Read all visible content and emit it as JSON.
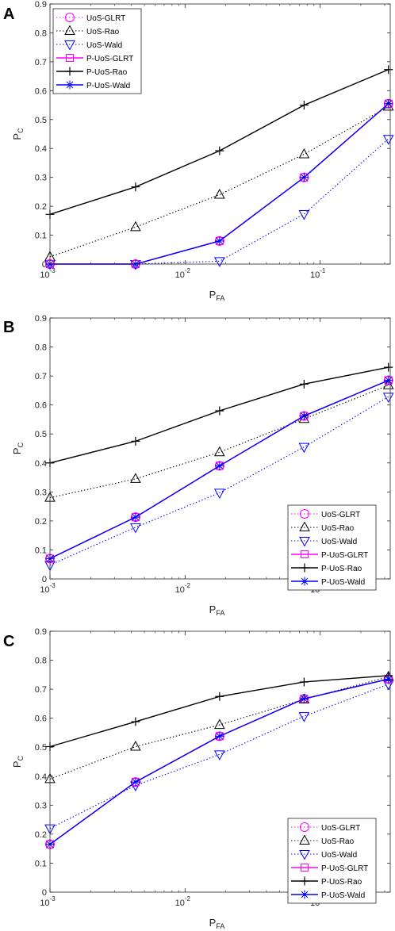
{
  "chart_data": [
    {
      "panel_label": "A",
      "type": "line",
      "xscale": "log",
      "xlim": [
        0.001,
        0.33
      ],
      "ylim": [
        0,
        0.9
      ],
      "xlabel": "P",
      "xlabel_sub": "FA",
      "ylabel": "P",
      "ylabel_sub": "C",
      "xticks": [
        "10",
        "10",
        "10"
      ],
      "xticks_exp": [
        "-3",
        "-2",
        "-1"
      ],
      "yticks": [
        "0",
        "0.1",
        "0.2",
        "0.3",
        "0.4",
        "0.5",
        "0.6",
        "0.7",
        "0.8",
        "0.9"
      ],
      "legend_position": "top-left",
      "x": [
        0.001,
        0.0043,
        0.018,
        0.076,
        0.32
      ],
      "series": [
        {
          "name": "UoS-GLRT",
          "values": [
            0.0,
            0.0,
            0.08,
            0.3,
            0.555
          ],
          "color": "#ff00ff",
          "dash": "dotted",
          "marker": "circle"
        },
        {
          "name": "UoS-Rao",
          "values": [
            0.025,
            0.128,
            0.24,
            0.38,
            0.545
          ],
          "color": "#000000",
          "dash": "dotted",
          "marker": "triangle-up"
        },
        {
          "name": "UoS-Wald",
          "values": [
            0.0,
            0.0,
            0.01,
            0.173,
            0.433
          ],
          "color": "#0000ff",
          "dash": "dotted",
          "marker": "triangle-down"
        },
        {
          "name": "P-UoS-GLRT",
          "values": [
            0.0,
            0.0,
            0.08,
            0.3,
            0.555
          ],
          "color": "#ff00ff",
          "dash": "solid",
          "marker": "square"
        },
        {
          "name": "P-UoS-Rao",
          "values": [
            0.172,
            0.267,
            0.392,
            0.55,
            0.673
          ],
          "color": "#000000",
          "dash": "solid",
          "marker": "plus"
        },
        {
          "name": "P-UoS-Wald",
          "values": [
            0.0,
            0.0,
            0.08,
            0.3,
            0.555
          ],
          "color": "#0000ff",
          "dash": "solid",
          "marker": "asterisk"
        }
      ]
    },
    {
      "panel_label": "B",
      "type": "line",
      "xscale": "log",
      "xlim": [
        0.001,
        0.33
      ],
      "ylim": [
        0,
        0.9
      ],
      "xlabel": "P",
      "xlabel_sub": "FA",
      "ylabel": "P",
      "ylabel_sub": "C",
      "xticks": [
        "10",
        "10",
        "10"
      ],
      "xticks_exp": [
        "-3",
        "-2",
        "-1"
      ],
      "yticks": [
        "0",
        "0.1",
        "0.2",
        "0.3",
        "0.4",
        "0.5",
        "0.6",
        "0.7",
        "0.8",
        "0.9"
      ],
      "legend_position": "bottom-right",
      "x": [
        0.001,
        0.0043,
        0.018,
        0.076,
        0.32
      ],
      "series": [
        {
          "name": "UoS-GLRT",
          "values": [
            0.07,
            0.213,
            0.39,
            0.562,
            0.685
          ],
          "color": "#ff00ff",
          "dash": "dotted",
          "marker": "circle"
        },
        {
          "name": "UoS-Rao",
          "values": [
            0.28,
            0.345,
            0.437,
            0.552,
            0.668
          ],
          "color": "#000000",
          "dash": "dotted",
          "marker": "triangle-up"
        },
        {
          "name": "UoS-Wald",
          "values": [
            0.048,
            0.178,
            0.297,
            0.455,
            0.628
          ],
          "color": "#0000ff",
          "dash": "dotted",
          "marker": "triangle-down"
        },
        {
          "name": "P-UoS-GLRT",
          "values": [
            0.07,
            0.213,
            0.39,
            0.562,
            0.685
          ],
          "color": "#ff00ff",
          "dash": "solid",
          "marker": "square"
        },
        {
          "name": "P-UoS-Rao",
          "values": [
            0.4,
            0.475,
            0.58,
            0.672,
            0.73
          ],
          "color": "#000000",
          "dash": "solid",
          "marker": "plus"
        },
        {
          "name": "P-UoS-Wald",
          "values": [
            0.07,
            0.213,
            0.39,
            0.562,
            0.685
          ],
          "color": "#0000ff",
          "dash": "solid",
          "marker": "asterisk"
        }
      ]
    },
    {
      "panel_label": "C",
      "type": "line",
      "xscale": "log",
      "xlim": [
        0.001,
        0.33
      ],
      "ylim": [
        0,
        0.9
      ],
      "xlabel": "P",
      "xlabel_sub": "FA",
      "ylabel": "P",
      "ylabel_sub": "C",
      "xticks": [
        "10",
        "10",
        "10"
      ],
      "xticks_exp": [
        "-3",
        "-2",
        "-1"
      ],
      "yticks": [
        "0",
        "0.1",
        "0.2",
        "0.3",
        "0.4",
        "0.5",
        "0.6",
        "0.7",
        "0.8",
        "0.9"
      ],
      "legend_position": "bottom-right",
      "x": [
        0.001,
        0.0043,
        0.018,
        0.076,
        0.32
      ],
      "series": [
        {
          "name": "UoS-GLRT",
          "values": [
            0.165,
            0.38,
            0.538,
            0.667,
            0.735
          ],
          "color": "#ff00ff",
          "dash": "dotted",
          "marker": "circle"
        },
        {
          "name": "UoS-Rao",
          "values": [
            0.39,
            0.502,
            0.577,
            0.665,
            0.743
          ],
          "color": "#000000",
          "dash": "dotted",
          "marker": "triangle-up"
        },
        {
          "name": "UoS-Wald",
          "values": [
            0.22,
            0.368,
            0.475,
            0.607,
            0.717
          ],
          "color": "#0000ff",
          "dash": "dotted",
          "marker": "triangle-down"
        },
        {
          "name": "P-UoS-GLRT",
          "values": [
            0.165,
            0.38,
            0.538,
            0.667,
            0.735
          ],
          "color": "#ff00ff",
          "dash": "solid",
          "marker": "square"
        },
        {
          "name": "P-UoS-Rao",
          "values": [
            0.502,
            0.588,
            0.675,
            0.725,
            0.747
          ],
          "color": "#000000",
          "dash": "solid",
          "marker": "plus"
        },
        {
          "name": "P-UoS-Wald",
          "values": [
            0.165,
            0.38,
            0.538,
            0.667,
            0.735
          ],
          "color": "#0000ff",
          "dash": "solid",
          "marker": "asterisk"
        }
      ]
    }
  ]
}
